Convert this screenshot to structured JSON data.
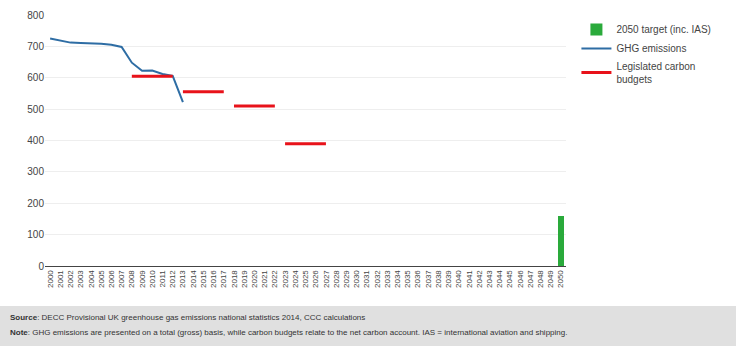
{
  "chart_data": {
    "type": "line",
    "series": [
      {
        "name": "2050 target (inc. IAS)",
        "type": "bar",
        "color": "#2AAA3B",
        "x": [
          2050
        ],
        "values": [
          160
        ]
      },
      {
        "name": "GHG emissions",
        "type": "line",
        "color": "#2E6DA4",
        "x": [
          2000,
          2001,
          2002,
          2003,
          2004,
          2005,
          2006,
          2007,
          2008,
          2009,
          2010,
          2011,
          2012,
          2013
        ],
        "values": [
          725,
          718,
          712,
          711,
          710,
          708,
          705,
          698,
          648,
          622,
          623,
          612,
          606,
          522
        ]
      },
      {
        "name": "Legislated carbon\nbudgets",
        "type": "line",
        "color": "#E8121A",
        "x": [
          2008,
          2012,
          null,
          2013,
          2017,
          null,
          2018,
          2022,
          null,
          2023,
          2027
        ],
        "values": [
          605,
          605,
          null,
          555,
          555,
          null,
          510,
          510,
          null,
          390,
          390
        ]
      }
    ],
    "xlim": [
      1999.5,
      2050.5
    ],
    "xticks": [
      2000,
      2001,
      2002,
      2003,
      2004,
      2005,
      2006,
      2007,
      2008,
      2009,
      2010,
      2011,
      2012,
      2013,
      2014,
      2015,
      2016,
      2017,
      2018,
      2019,
      2020,
      2021,
      2022,
      2023,
      2024,
      2025,
      2026,
      2027,
      2028,
      2029,
      2030,
      2031,
      2032,
      2033,
      2034,
      2035,
      2036,
      2037,
      2038,
      2039,
      2040,
      2041,
      2042,
      2043,
      2044,
      2045,
      2046,
      2047,
      2048,
      2049,
      2050
    ],
    "ylim": [
      0,
      800
    ],
    "yticks": [
      0,
      100,
      200,
      300,
      400,
      500,
      600,
      700,
      800
    ],
    "grid": "y",
    "legend": "right",
    "annotations": [
      "Source: DECC Provisional UK greenhouse gas emissions national statistics 2014, CCC calculations",
      "Note: GHG emissions are presented on a total (gross) basis, while carbon budgets relate to the net carbon account. IAS = international aviation and shipping."
    ]
  }
}
